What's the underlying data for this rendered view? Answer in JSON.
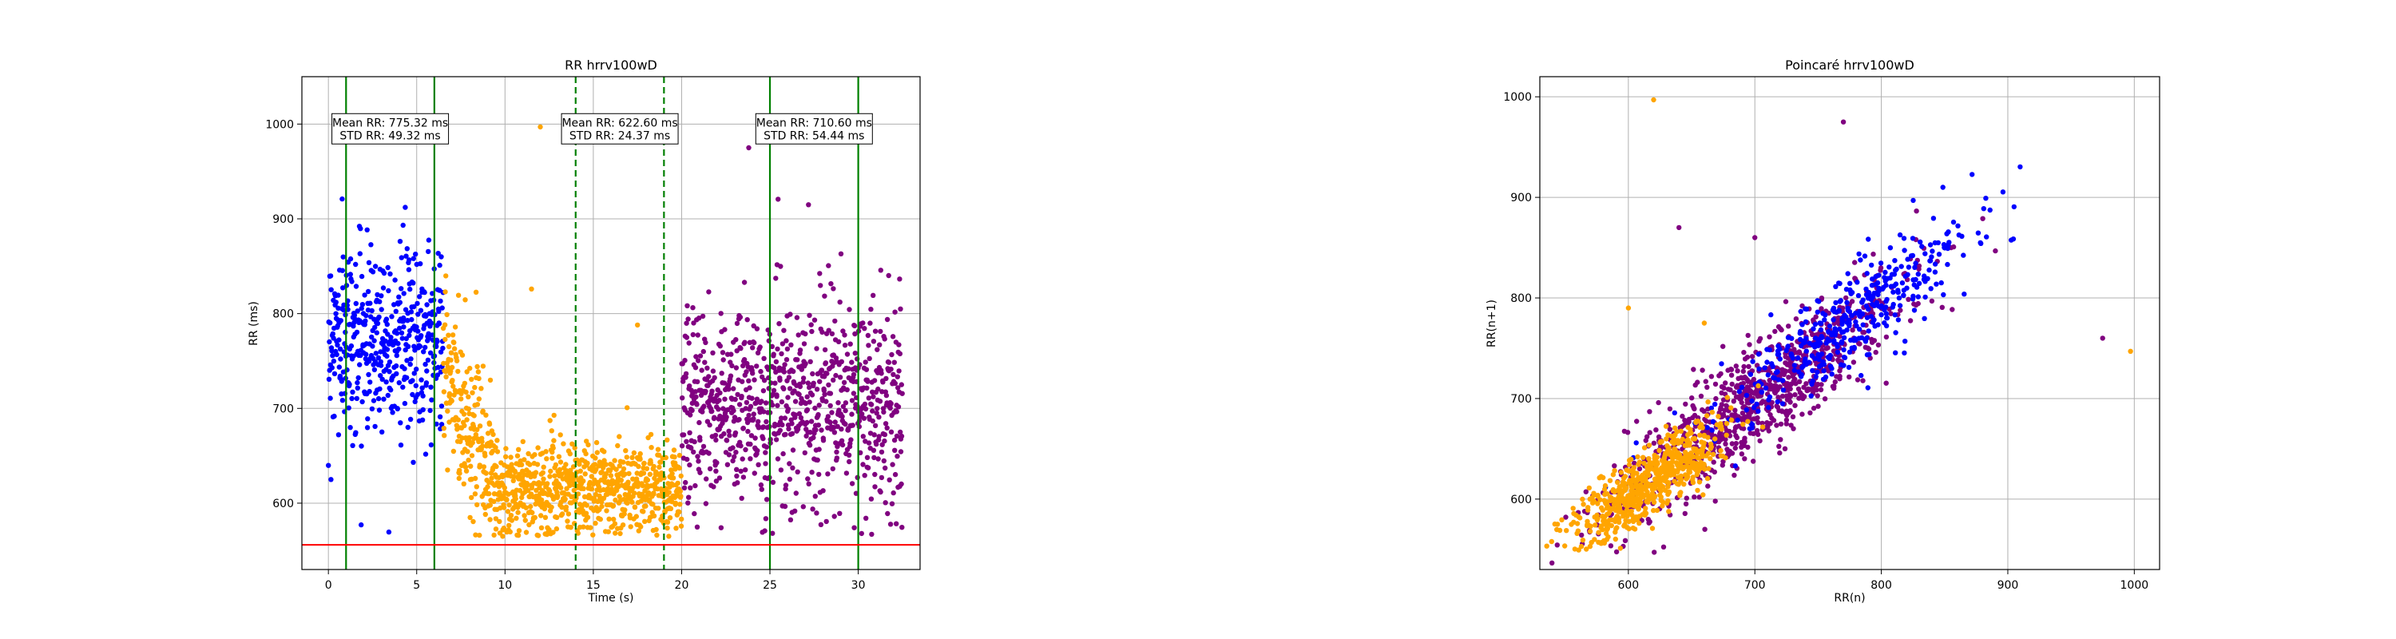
{
  "chart_data": [
    {
      "type": "scatter",
      "title": "RR hrrv100wD",
      "xlabel": "Time (s)",
      "ylabel": "RR (ms)",
      "xlim": [
        -1.5,
        33.5
      ],
      "ylim": [
        530,
        1050
      ],
      "xticks": [
        0,
        5,
        10,
        15,
        20,
        25,
        30
      ],
      "yticks": [
        600,
        700,
        800,
        900,
        1000
      ],
      "grid": true,
      "series": [
        {
          "color": "#0000ff",
          "segments": [
            {
              "x0": 0,
              "x1": 6.5,
              "mean": 775,
              "std": 49
            }
          ]
        },
        {
          "color": "#ffa500",
          "segments": [
            {
              "x0": 6.5,
              "x1": 9.5,
              "mean_start": 740,
              "mean_end": 620,
              "std": 45
            },
            {
              "x0": 9.5,
              "x1": 20,
              "mean": 615,
              "std": 25
            }
          ],
          "outliers": [
            [
              12.0,
              997
            ],
            [
              11.5,
              826
            ],
            [
              17.5,
              788
            ]
          ]
        },
        {
          "color": "#800080",
          "segments": [
            {
              "x0": 20,
              "x1": 32.5,
              "mean": 705,
              "std": 55
            }
          ],
          "outliers": [
            [
              23.8,
              975
            ]
          ]
        }
      ],
      "vlines": [
        {
          "x": 1,
          "color": "#008000",
          "style": "solid"
        },
        {
          "x": 6,
          "color": "#008000",
          "style": "solid"
        },
        {
          "x": 14,
          "color": "#008000",
          "style": "dashed"
        },
        {
          "x": 19,
          "color": "#008000",
          "style": "dashed"
        },
        {
          "x": 25,
          "color": "#008000",
          "style": "solid"
        },
        {
          "x": 30,
          "color": "#008000",
          "style": "solid"
        }
      ],
      "hlines": [
        {
          "y": 556,
          "color": "#ff0000"
        }
      ],
      "annotations": [
        {
          "line1": "Mean RR: 775.32 ms",
          "line2": "STD RR: 49.32 ms",
          "x": 3.5,
          "y": 995
        },
        {
          "line1": "Mean RR: 622.60 ms",
          "line2": "STD RR: 24.37 ms",
          "x": 16.5,
          "y": 995
        },
        {
          "line1": "Mean RR: 710.60 ms",
          "line2": "STD RR: 54.44 ms",
          "x": 27.5,
          "y": 995
        }
      ]
    },
    {
      "type": "scatter",
      "title": "Poincaré hrrv100wD",
      "xlabel": "RR(n)",
      "ylabel": "RR(n+1)",
      "xlim": [
        530,
        1020
      ],
      "ylim": [
        530,
        1020
      ],
      "xticks": [
        600,
        700,
        800,
        900,
        1000
      ],
      "yticks": [
        600,
        700,
        800,
        900,
        1000
      ],
      "grid": true,
      "series": [
        {
          "color": "#800080",
          "center": 705,
          "spread": 55,
          "jitter": 28,
          "outliers": [
            [
              975,
              760
            ],
            [
              770,
              975
            ],
            [
              640,
              870
            ],
            [
              700,
              860
            ]
          ]
        },
        {
          "color": "#0000ff",
          "center": 780,
          "spread": 48,
          "jitter": 24
        },
        {
          "color": "#ffa500",
          "center": 618,
          "spread": 25,
          "jitter": 18,
          "outliers": [
            [
              620,
              997
            ],
            [
              997,
              747
            ],
            [
              600,
              790
            ],
            [
              660,
              775
            ]
          ]
        }
      ]
    }
  ]
}
